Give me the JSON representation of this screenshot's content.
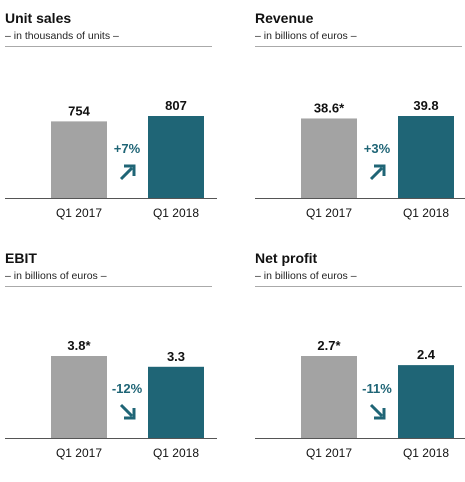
{
  "colors": {
    "q1_2017_bar": "#a3a3a3",
    "q1_2018_bar": "#1f6576",
    "change_text": "#1f6576",
    "axis": "#555555",
    "rule": "#aaaaaa"
  },
  "chart_data": [
    {
      "type": "bar",
      "title": "Unit sales",
      "subtitle": "– in thousands of units –",
      "categories": [
        "Q1 2017",
        "Q1 2018"
      ],
      "values": [
        754,
        807
      ],
      "value_labels": [
        "754",
        "807"
      ],
      "change": {
        "label": "+7%",
        "direction": "up",
        "arrow_icon": "arrow-up-right-icon"
      }
    },
    {
      "type": "bar",
      "title": "Revenue",
      "subtitle": "– in billions of euros –",
      "categories": [
        "Q1 2017",
        "Q1 2018"
      ],
      "values": [
        38.6,
        39.8
      ],
      "value_labels": [
        "38.6*",
        "39.8"
      ],
      "change": {
        "label": "+3%",
        "direction": "up",
        "arrow_icon": "arrow-up-right-icon"
      }
    },
    {
      "type": "bar",
      "title": "EBIT",
      "subtitle": "– in billions of euros –",
      "categories": [
        "Q1 2017",
        "Q1 2018"
      ],
      "values": [
        3.8,
        3.3
      ],
      "value_labels": [
        "3.8*",
        "3.3"
      ],
      "change": {
        "label": "-12%",
        "direction": "down",
        "arrow_icon": "arrow-down-right-icon"
      }
    },
    {
      "type": "bar",
      "title": "Net profit",
      "subtitle": "– in billions of euros –",
      "categories": [
        "Q1 2017",
        "Q1 2018"
      ],
      "values": [
        2.7,
        2.4
      ],
      "value_labels": [
        "2.7*",
        "2.4"
      ],
      "change": {
        "label": "-11%",
        "direction": "down",
        "arrow_icon": "arrow-down-right-icon"
      }
    }
  ]
}
